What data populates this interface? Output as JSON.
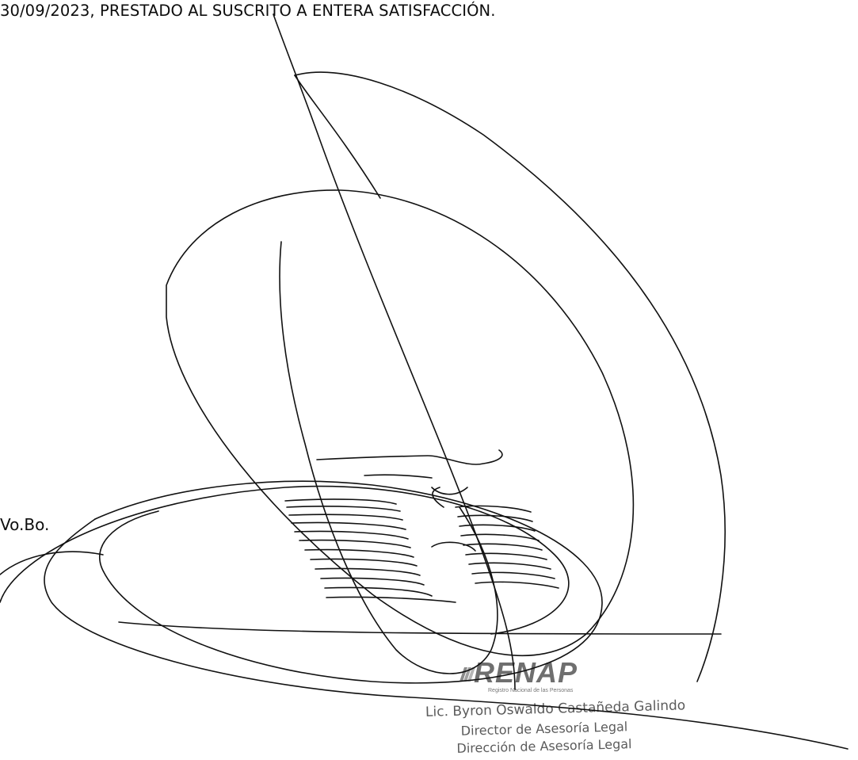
{
  "document": {
    "header_text": "30/09/2023, PRESTADO AL SUSCRITO A ENTERA SATISFACCIÓN.",
    "approval_label": "Vo.Bo."
  },
  "logo": {
    "wordmark": "RENAP",
    "subtitle": "Registro Nacional de las Personas",
    "color": "#6f6f6f"
  },
  "stamp": {
    "name": "Lic. Byron Oswaldo Castañeda Galindo",
    "title": "Director de Asesoría Legal",
    "department": "Dirección de Asesoría Legal",
    "color": "#5b5b5b"
  },
  "signature": {
    "ink_color": "#111111"
  }
}
